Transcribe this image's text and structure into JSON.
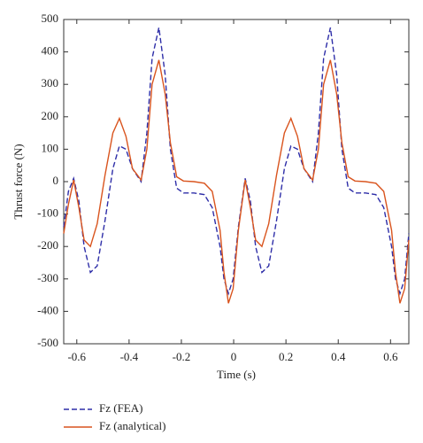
{
  "chart_data": {
    "type": "line",
    "xlabel": "Time (s)",
    "ylabel": "Thrust force (N)",
    "xlim": [
      -0.65,
      0.67
    ],
    "ylim": [
      -500,
      500
    ],
    "xticks": [
      -0.6,
      -0.4,
      -0.2,
      0,
      0.2,
      0.4,
      0.6
    ],
    "yticks": [
      -500,
      -400,
      -300,
      -200,
      -100,
      0,
      100,
      200,
      300,
      400,
      500
    ],
    "legend": "bottom",
    "x": [
      -0.65,
      -0.632,
      -0.612,
      -0.592,
      -0.572,
      -0.548,
      -0.522,
      -0.492,
      -0.462,
      -0.437,
      -0.412,
      -0.387,
      -0.354,
      -0.332,
      -0.312,
      -0.286,
      -0.262,
      -0.242,
      -0.218,
      -0.192,
      -0.152,
      -0.112,
      -0.082,
      -0.052,
      -0.037,
      -0.02,
      -0.002,
      0.018,
      0.044,
      0.064,
      0.084,
      0.108,
      0.134,
      0.164,
      0.194,
      0.219,
      0.244,
      0.269,
      0.302,
      0.324,
      0.344,
      0.37,
      0.394,
      0.414,
      0.438,
      0.464,
      0.504,
      0.544,
      0.574,
      0.604,
      0.619,
      0.636,
      0.654,
      0.67
    ],
    "series": [
      {
        "name": "Fz (FEA)",
        "color": "#2e2ea8",
        "dash": true,
        "values": [
          -140,
          -30,
          10,
          -60,
          -200,
          -280,
          -260,
          -120,
          40,
          110,
          100,
          40,
          0,
          150,
          380,
          475,
          330,
          100,
          -20,
          -35,
          -35,
          -40,
          -80,
          -200,
          -300,
          -345,
          -300,
          -140,
          10,
          -60,
          -200,
          -280,
          -260,
          -120,
          40,
          110,
          100,
          40,
          0,
          150,
          380,
          475,
          330,
          100,
          -20,
          -35,
          -35,
          -40,
          -80,
          -200,
          -300,
          -345,
          -300,
          -160
        ]
      },
      {
        "name": "Fz (analytical)",
        "color": "#d9541e",
        "dash": false,
        "values": [
          -160,
          -70,
          5,
          -80,
          -180,
          -200,
          -130,
          20,
          150,
          195,
          140,
          40,
          5,
          100,
          300,
          375,
          270,
          120,
          15,
          2,
          0,
          -5,
          -30,
          -150,
          -280,
          -375,
          -330,
          -150,
          5,
          -80,
          -180,
          -200,
          -130,
          20,
          150,
          195,
          140,
          40,
          5,
          100,
          300,
          375,
          270,
          120,
          15,
          2,
          0,
          -5,
          -30,
          -150,
          -280,
          -375,
          -330,
          -180
        ]
      }
    ]
  }
}
